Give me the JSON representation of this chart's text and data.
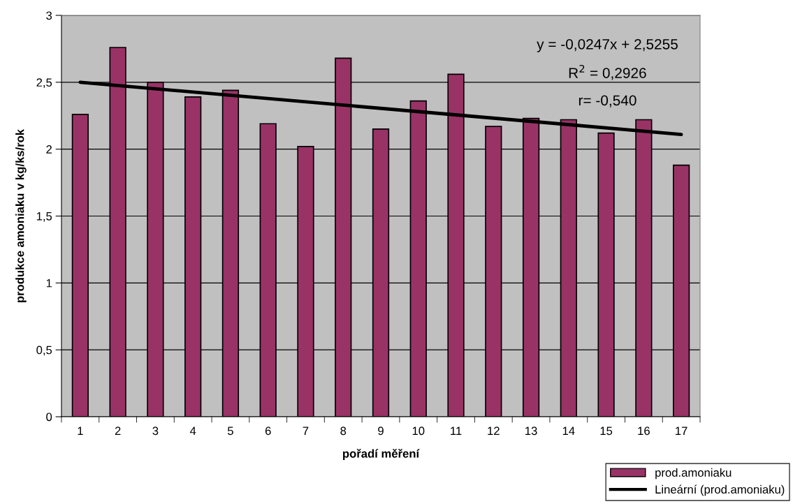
{
  "chart_data": {
    "type": "bar",
    "xlabel": "pořadí měření",
    "ylabel": "produkce amoniaku v kg/ks/rok",
    "categories": [
      "1",
      "2",
      "3",
      "4",
      "5",
      "6",
      "7",
      "8",
      "9",
      "10",
      "11",
      "12",
      "13",
      "14",
      "15",
      "16",
      "17"
    ],
    "series": [
      {
        "name": "prod.amoniaku",
        "color": "#993366",
        "values": [
          2.26,
          2.76,
          2.5,
          2.39,
          2.44,
          2.19,
          2.02,
          2.68,
          2.15,
          2.36,
          2.56,
          2.17,
          2.23,
          2.22,
          2.12,
          2.22,
          1.88
        ]
      },
      {
        "name": "Lineární (prod.amoniaku)",
        "type": "line",
        "color": "#000000",
        "x": [
          "1",
          "17"
        ],
        "values": [
          2.5,
          2.11
        ]
      }
    ],
    "ylim": [
      0,
      3
    ],
    "yticks": [
      0,
      {
        "value": 0.5,
        "label": "0,5"
      },
      1,
      {
        "value": 1.5,
        "label": "1,5"
      },
      2,
      {
        "value": 2.5,
        "label": "2,5"
      },
      3
    ],
    "grid": "y",
    "legend": "bottom right",
    "annotations": [
      "y = -0,0247x + 2,5255",
      "R$^{2}$ = 0,2926",
      "r= -0,540"
    ]
  }
}
